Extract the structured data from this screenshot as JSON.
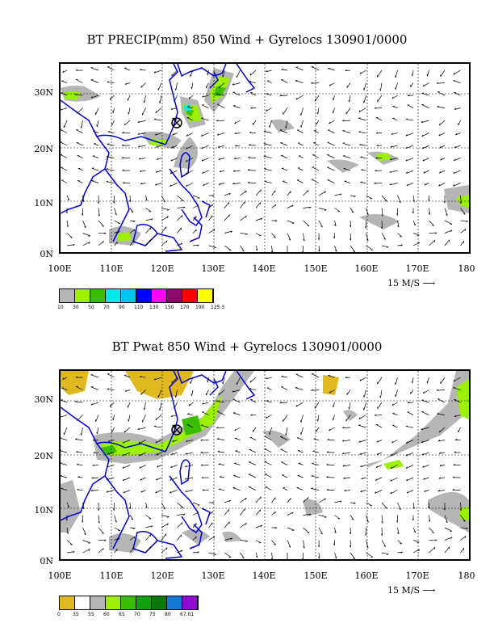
{
  "panels": [
    {
      "title": "BT PRECIP(mm) 850 Wind + Gyrelocs 130901/0000",
      "y_ticks": [
        "30N",
        "20N",
        "10N",
        "0N"
      ],
      "x_ticks": [
        "100E",
        "110E",
        "120E",
        "130E",
        "140E",
        "150E",
        "160E",
        "170E",
        "180"
      ],
      "ref_vector": "15 M/S",
      "colorbar_colors": [
        "#b5b5b5",
        "#9cf000",
        "#3cbe00",
        "#00e8e8",
        "#00c4f0",
        "#0000ff",
        "#ff00ff",
        "#8b0a6e",
        "#ff0000",
        "#ffff00"
      ],
      "colorbar_labels": [
        "10",
        "30",
        "50",
        "70",
        "90",
        "110",
        "130",
        "150",
        "170",
        "190",
        "125.3"
      ],
      "gyre_location": {
        "lon": 122.0,
        "lat": 25.0
      }
    },
    {
      "title": "BT Pwat 850 Wind + Gyrelocs 130901/0000",
      "y_ticks": [
        "30N",
        "20N",
        "10N",
        "0N"
      ],
      "x_ticks": [
        "100E",
        "110E",
        "120E",
        "130E",
        "140E",
        "150E",
        "160E",
        "170E",
        "180"
      ],
      "ref_vector": "15 M/S",
      "colorbar_colors": [
        "#e0b820",
        "#ffffff",
        "#b5b5b5",
        "#9cf000",
        "#3cbe00",
        "#10a010",
        "#0a780a",
        "#1478d2",
        "#8c0ad2"
      ],
      "colorbar_labels": [
        "0",
        "35",
        "55",
        "60",
        "65",
        "70",
        "75",
        "80",
        "67.01"
      ],
      "gyre_location": {
        "lon": 122.0,
        "lat": 25.0
      }
    }
  ],
  "map_extent": {
    "lon_min": 100,
    "lon_max": 180,
    "lat_min": 0,
    "lat_max": 35
  },
  "colors": {
    "coastline": "#0000dd",
    "grid": "#000000",
    "vector": "#000000"
  }
}
